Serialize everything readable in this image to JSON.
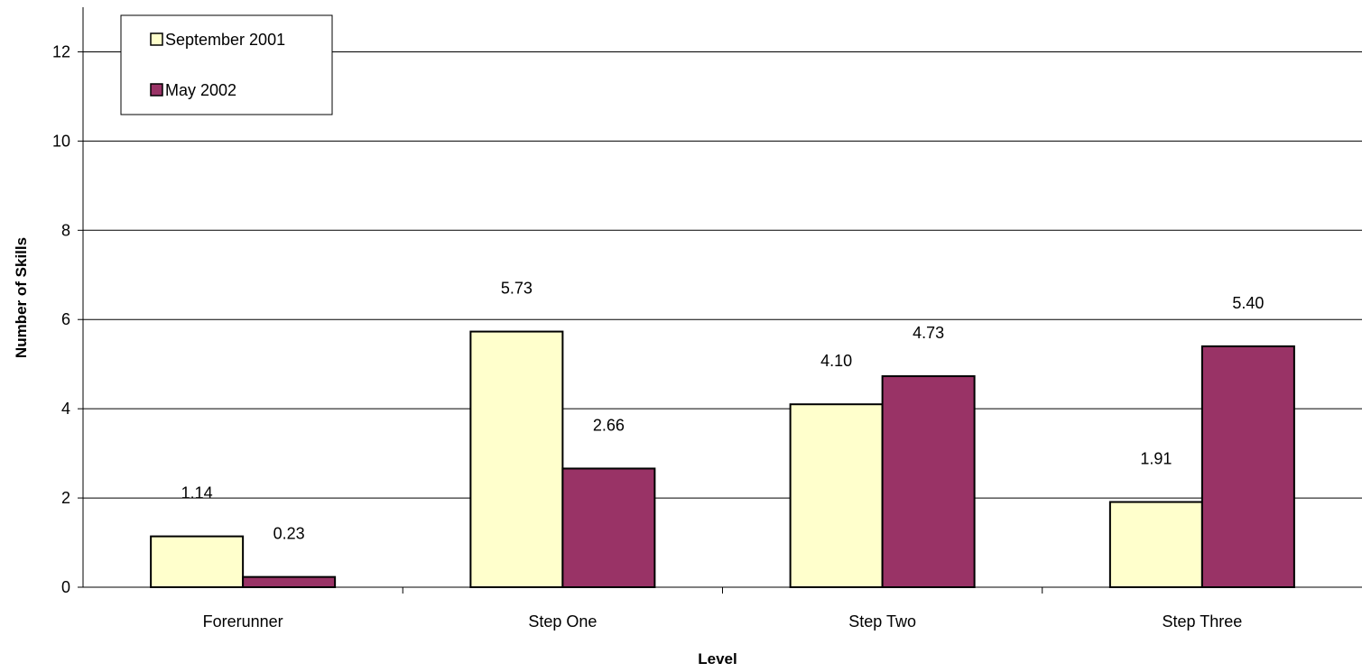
{
  "chart_data": {
    "type": "bar",
    "title": "",
    "xlabel": "Level",
    "ylabel": "Number of Skills",
    "categories": [
      "Forerunner",
      "Step One",
      "Step Two",
      "Step Three"
    ],
    "series": [
      {
        "name": "September 2001",
        "color": "#FFFFCC",
        "values": [
          1.14,
          5.73,
          4.1,
          1.91
        ],
        "labels": [
          "1.14",
          "5.73",
          "4.10",
          "1.91"
        ]
      },
      {
        "name": "May 2002",
        "color": "#993366",
        "values": [
          0.23,
          2.66,
          4.73,
          5.4
        ],
        "labels": [
          "0.23",
          "2.66",
          "4.73",
          "5.40"
        ]
      }
    ],
    "ylim": [
      0,
      13
    ],
    "yticks": [
      0,
      2,
      4,
      6,
      8,
      10,
      12
    ],
    "grid": true,
    "legend_position": "top-left"
  }
}
